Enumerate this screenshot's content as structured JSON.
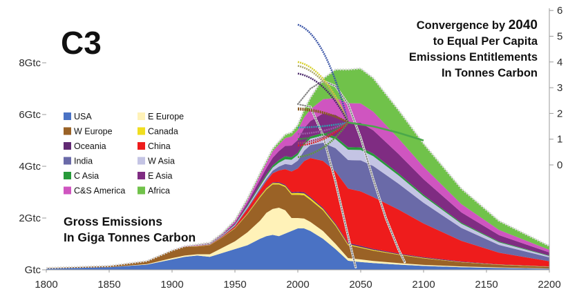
{
  "tag": "C3",
  "heading": {
    "line1_pre": "Convergence by ",
    "line1_year": "2040",
    "line2": "to Equal Per Capita",
    "line3": "Emissions Entitlements",
    "line4": "In Tonnes Carbon"
  },
  "subtitle": {
    "line1": "Gross Emissions",
    "line2": "In Giga Tonnes Carbon"
  },
  "chart_data": {
    "type": "area",
    "x_ticks": [
      1800,
      1850,
      1900,
      1950,
      2000,
      2050,
      2100,
      2150,
      2200
    ],
    "left_axis": {
      "ticks": [
        {
          "value": 0,
          "label": "Gtc"
        },
        {
          "value": 2,
          "label": "2Gtc"
        },
        {
          "value": 4,
          "label": "4Gtc"
        },
        {
          "value": 6,
          "label": "6Gtc"
        },
        {
          "value": 8,
          "label": "8Gtc"
        }
      ],
      "range": [
        0,
        8
      ]
    },
    "right_axis": {
      "ticks": [
        0,
        1,
        2,
        3,
        4,
        5,
        6
      ],
      "range": [
        0,
        6
      ]
    },
    "legend_placement": "left",
    "series": [
      {
        "name": "USA",
        "color": "#4a72c4"
      },
      {
        "name": "E Europe",
        "color": "#fff2b8"
      },
      {
        "name": "W Europe",
        "color": "#9a6226"
      },
      {
        "name": "Canada",
        "color": "#f0de20"
      },
      {
        "name": "Oceania",
        "color": "#612a73"
      },
      {
        "name": "China",
        "color": "#ee1c1c"
      },
      {
        "name": "India",
        "color": "#6a6aa8"
      },
      {
        "name": "W Asia",
        "color": "#c4c4e4"
      },
      {
        "name": "C Asia",
        "color": "#279a3a"
      },
      {
        "name": "E Asia",
        "color": "#7f2c82"
      },
      {
        "name": "C&S America",
        "color": "#cf55c0"
      },
      {
        "name": "Africa",
        "color": "#70c24a"
      }
    ],
    "stack": {
      "x": [
        1800,
        1850,
        1880,
        1900,
        1910,
        1920,
        1930,
        1940,
        1950,
        1960,
        1970,
        1975,
        1980,
        1985,
        1990,
        1995,
        2000,
        2005,
        2010,
        2020,
        2030,
        2040,
        2050,
        2060,
        2080,
        2100,
        2130,
        2160,
        2200
      ],
      "layers": [
        {
          "name": "USA",
          "values": [
            0.05,
            0.1,
            0.2,
            0.4,
            0.5,
            0.55,
            0.5,
            0.65,
            0.8,
            0.95,
            1.2,
            1.3,
            1.35,
            1.3,
            1.4,
            1.5,
            1.6,
            1.6,
            1.5,
            1.2,
            0.8,
            0.35,
            0.3,
            0.26,
            0.2,
            0.15,
            0.1,
            0.07,
            0.04
          ]
        },
        {
          "name": "E Europe",
          "values": [
            0,
            0,
            0.02,
            0.05,
            0.05,
            0.05,
            0.1,
            0.2,
            0.3,
            0.5,
            0.7,
            0.9,
            1.0,
            1.1,
            0.9,
            0.5,
            0.4,
            0.38,
            0.35,
            0.3,
            0.2,
            0.1,
            0.1,
            0.08,
            0.06,
            0.04,
            0.03,
            0.02,
            0.01
          ]
        },
        {
          "name": "W Europe",
          "values": [
            0.02,
            0.05,
            0.12,
            0.3,
            0.35,
            0.3,
            0.35,
            0.4,
            0.5,
            0.7,
            0.9,
            0.9,
            0.95,
            0.9,
            0.9,
            0.9,
            0.9,
            0.9,
            0.85,
            0.8,
            0.7,
            0.5,
            0.45,
            0.4,
            0.32,
            0.25,
            0.16,
            0.1,
            0.06
          ]
        },
        {
          "name": "Canada",
          "values": [
            0,
            0,
            0,
            0,
            0,
            0.01,
            0.01,
            0.01,
            0.02,
            0.03,
            0.05,
            0.05,
            0.05,
            0.05,
            0.05,
            0.06,
            0.07,
            0.07,
            0.07,
            0.06,
            0.05,
            0.04,
            0.03,
            0.03,
            0.02,
            0.02,
            0.01,
            0.01,
            0.01
          ]
        },
        {
          "name": "Oceania",
          "values": [
            0,
            0,
            0,
            0,
            0,
            0,
            0.01,
            0.01,
            0.01,
            0.02,
            0.03,
            0.03,
            0.03,
            0.04,
            0.04,
            0.04,
            0.05,
            0.05,
            0.05,
            0.05,
            0.05,
            0.05,
            0.05,
            0.04,
            0.03,
            0.03,
            0.02,
            0.01,
            0.01
          ]
        },
        {
          "name": "China",
          "values": [
            0,
            0,
            0,
            0,
            0,
            0.01,
            0.01,
            0.02,
            0.05,
            0.15,
            0.2,
            0.25,
            0.35,
            0.45,
            0.6,
            0.8,
            0.9,
            1.2,
            1.5,
            1.8,
            2.0,
            2.1,
            2.1,
            2.0,
            1.7,
            1.3,
            0.8,
            0.45,
            0.2
          ]
        },
        {
          "name": "India",
          "values": [
            0,
            0,
            0,
            0,
            0,
            0.01,
            0.01,
            0.02,
            0.03,
            0.05,
            0.07,
            0.08,
            0.1,
            0.15,
            0.2,
            0.25,
            0.3,
            0.4,
            0.5,
            0.7,
            0.9,
            1.1,
            1.2,
            1.2,
            1.0,
            0.8,
            0.5,
            0.3,
            0.15
          ]
        },
        {
          "name": "W Asia",
          "values": [
            0,
            0,
            0,
            0,
            0,
            0.01,
            0.01,
            0.02,
            0.03,
            0.05,
            0.08,
            0.1,
            0.12,
            0.15,
            0.18,
            0.2,
            0.22,
            0.24,
            0.25,
            0.3,
            0.35,
            0.4,
            0.4,
            0.38,
            0.32,
            0.25,
            0.16,
            0.1,
            0.05
          ]
        },
        {
          "name": "C Asia",
          "values": [
            0,
            0,
            0,
            0,
            0,
            0,
            0.01,
            0.01,
            0.02,
            0.04,
            0.06,
            0.07,
            0.08,
            0.1,
            0.12,
            0.1,
            0.08,
            0.08,
            0.08,
            0.08,
            0.09,
            0.1,
            0.1,
            0.1,
            0.08,
            0.06,
            0.04,
            0.03,
            0.02
          ]
        },
        {
          "name": "E Asia",
          "values": [
            0,
            0,
            0,
            0,
            0,
            0.01,
            0.01,
            0.02,
            0.05,
            0.1,
            0.2,
            0.25,
            0.3,
            0.35,
            0.4,
            0.45,
            0.5,
            0.55,
            0.6,
            0.75,
            0.85,
            0.95,
            0.95,
            0.9,
            0.75,
            0.6,
            0.4,
            0.25,
            0.12
          ]
        },
        {
          "name": "C&S America",
          "values": [
            0,
            0,
            0,
            0,
            0.01,
            0.02,
            0.02,
            0.04,
            0.08,
            0.12,
            0.18,
            0.2,
            0.25,
            0.25,
            0.3,
            0.35,
            0.38,
            0.42,
            0.45,
            0.55,
            0.65,
            0.75,
            0.75,
            0.72,
            0.6,
            0.48,
            0.32,
            0.2,
            0.1
          ]
        },
        {
          "name": "Africa",
          "values": [
            0,
            0,
            0,
            0,
            0,
            0.01,
            0.01,
            0.02,
            0.03,
            0.05,
            0.07,
            0.08,
            0.1,
            0.12,
            0.14,
            0.16,
            0.2,
            0.3,
            0.45,
            0.8,
            1.1,
            1.3,
            1.35,
            1.3,
            1.1,
            0.9,
            0.6,
            0.35,
            0.15
          ]
        }
      ]
    },
    "rise_and_fall_lines": [
      {
        "x": [
          2000,
          2010,
          2020,
          2030,
          2040,
          2046
        ],
        "values": [
          6.4,
          6.3,
          5.2,
          3.4,
          1.3,
          0.1
        ]
      },
      {
        "x": [
          2000,
          2010,
          2020,
          2030,
          2040,
          2050,
          2060,
          2070,
          2080,
          2085
        ],
        "values": [
          6.4,
          7.0,
          7.3,
          7.1,
          6.4,
          5.1,
          3.5,
          2.0,
          0.8,
          0.3
        ]
      }
    ],
    "per_capita_paths": [
      {
        "color": "#3d57a8",
        "start_value": 5.45
      },
      {
        "color": "#d6d02e",
        "start_value": 4.0
      },
      {
        "color": "#aaa66a",
        "start_value": 3.85
      },
      {
        "color": "#4b2a6b",
        "start_value": 3.55
      },
      {
        "color": "#8a5a24",
        "start_value": 2.2
      },
      {
        "color": "#8a5a24",
        "start_value": 2.15
      },
      {
        "color": "#2fa0b0",
        "start_value": 1.45
      },
      {
        "color": "#9b5ca8",
        "start_value": 1.2
      },
      {
        "color": "#2f9a3a",
        "start_value": 1.0
      },
      {
        "color": "#b03a6a",
        "start_value": 0.85
      },
      {
        "color": "#d62222",
        "start_value": 0.75
      },
      {
        "color": "#5e9a3a",
        "start_value": 0.3
      }
    ],
    "per_capita_convergence": {
      "x": 2040,
      "value": 1.65
    },
    "per_capita_after": {
      "x": [
        2040,
        2060,
        2080,
        2100
      ],
      "values": [
        1.65,
        1.5,
        1.25,
        0.95
      ]
    }
  }
}
